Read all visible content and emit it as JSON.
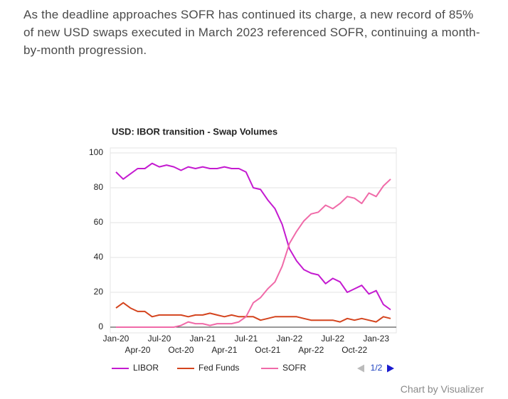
{
  "intro": "As the deadline approaches SOFR has continued its charge, a new record of 85% of new USD swaps executed in March 2023 referenced SOFR, continuing a month-by-month progression.",
  "chart_data": {
    "type": "line",
    "title": "USD: IBOR transition - Swap Volumes",
    "categories": [
      "Jan-20",
      null,
      null,
      "Apr-20",
      null,
      null,
      "Jul-20",
      null,
      null,
      "Oct-20",
      null,
      null,
      "Jan-21",
      null,
      null,
      "Apr-21",
      null,
      null,
      "Jul-21",
      null,
      null,
      "Oct-21",
      null,
      null,
      "Jan-22",
      null,
      null,
      "Apr-22",
      null,
      null,
      "Jul-22",
      null,
      null,
      "Oct-22",
      null,
      null,
      "Jan-23",
      null,
      null
    ],
    "series": [
      {
        "name": "LIBOR",
        "color": "#c41ad0",
        "values": [
          89,
          85,
          88,
          91,
          91,
          94,
          92,
          93,
          92,
          90,
          92,
          91,
          92,
          91,
          91,
          92,
          91,
          91,
          89,
          80,
          79,
          73,
          68,
          59,
          45,
          38,
          33,
          31,
          30,
          25,
          28,
          26,
          20,
          22,
          24,
          19,
          21,
          13,
          10
        ]
      },
      {
        "name": "Fed Funds",
        "color": "#d4441e",
        "values": [
          11,
          14,
          11,
          9,
          9,
          6,
          7,
          7,
          7,
          7,
          6,
          7,
          7,
          8,
          7,
          6,
          7,
          6,
          6,
          6,
          4,
          5,
          6,
          6,
          6,
          6,
          5,
          4,
          4,
          4,
          4,
          3,
          5,
          4,
          5,
          4,
          3,
          6,
          5
        ]
      },
      {
        "name": "SOFR",
        "color": "#f06aa8",
        "values": [
          0,
          0,
          0,
          0,
          0,
          0,
          0,
          0,
          0,
          1,
          3,
          2,
          2,
          1,
          2,
          2,
          2,
          3,
          6,
          14,
          17,
          22,
          26,
          35,
          48,
          55,
          61,
          65,
          66,
          70,
          68,
          71,
          75,
          74,
          71,
          77,
          75,
          81,
          85
        ]
      }
    ],
    "ylim": [
      0,
      100
    ],
    "yticks": [
      0,
      20,
      40,
      60,
      80,
      100
    ],
    "grid": true,
    "legend": "bottom"
  },
  "pager": "1/2",
  "credit": "Chart by Visualizer"
}
